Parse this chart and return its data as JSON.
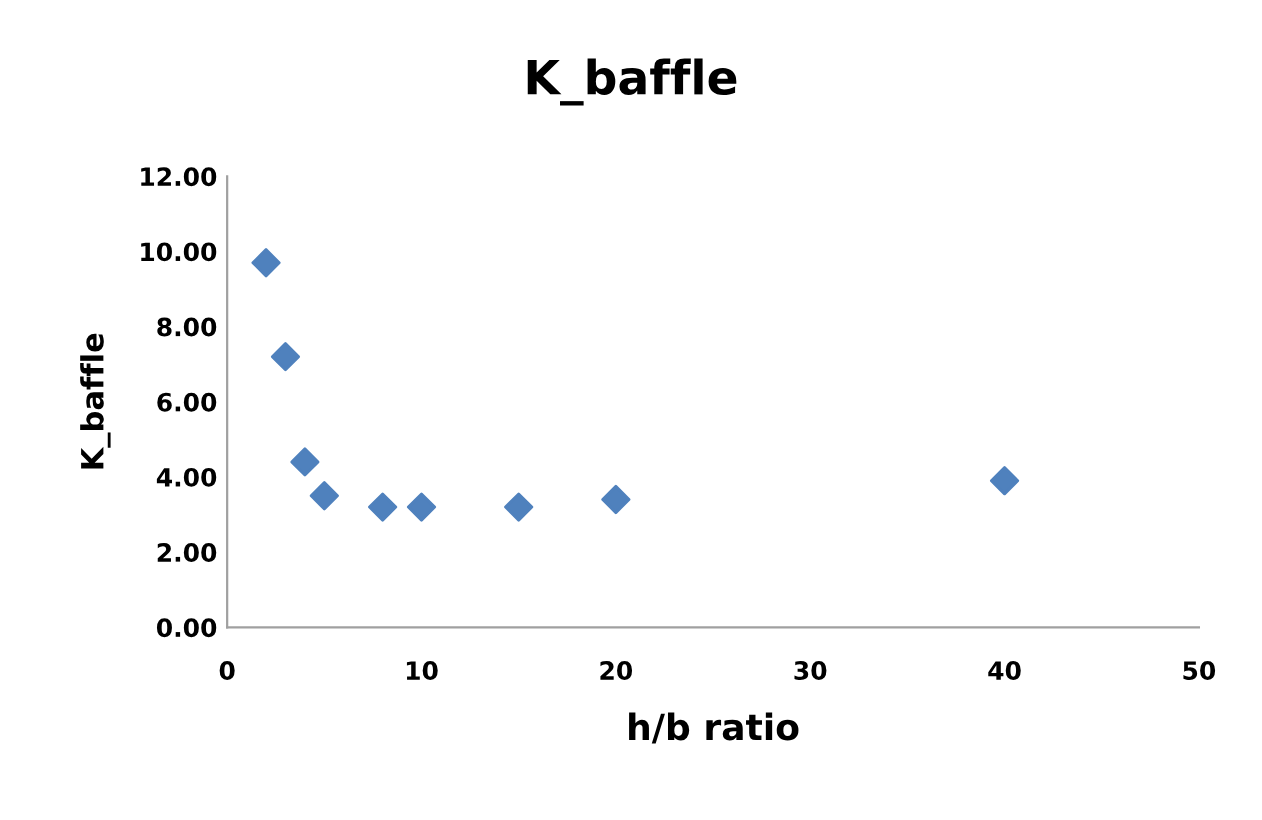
{
  "chart_data": {
    "type": "scatter",
    "title": "K_baffle",
    "xlabel": "h/b ratio",
    "ylabel": "K_baffle",
    "x": [
      2,
      3,
      4,
      5,
      8,
      10,
      15,
      20,
      40
    ],
    "series": [
      {
        "color": "#4f81bd",
        "values": [
          9.7,
          7.2,
          4.4,
          3.5,
          3.2,
          3.2,
          3.2,
          3.4,
          3.9
        ]
      }
    ],
    "xlim": [
      0,
      50
    ],
    "xticks": [
      0,
      10,
      20,
      30,
      40,
      50
    ],
    "ylim": [
      0,
      12
    ],
    "yticks": [
      {
        "value": 0,
        "label": "0.00"
      },
      {
        "value": 2,
        "label": "2.00"
      },
      {
        "value": 4,
        "label": "4.00"
      },
      {
        "value": 6,
        "label": "6.00"
      },
      {
        "value": 8,
        "label": "8.00"
      },
      {
        "value": 10,
        "label": "10.00"
      },
      {
        "value": 12,
        "label": "12.00"
      }
    ],
    "marker": "diamond",
    "grid": false,
    "legend": false
  }
}
